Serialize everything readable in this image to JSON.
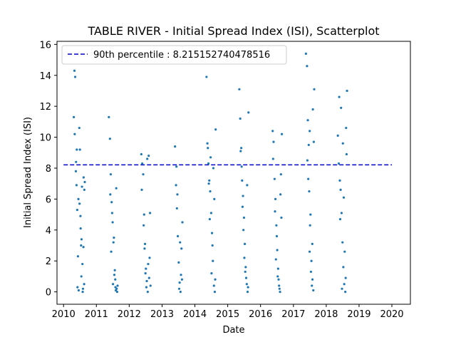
{
  "chart_data": {
    "type": "scatter",
    "title": "TABLE RIVER - Initial Spread Index (ISI), Scatterplot",
    "xlabel": "Date",
    "ylabel": "Initial Spread Index (ISI)",
    "xlim": [
      "2009-10-20",
      "2020-07-25"
    ],
    "ylim": [
      -0.8,
      16.2
    ],
    "x_ticks": [
      "2010",
      "2011",
      "2012",
      "2013",
      "2014",
      "2015",
      "2016",
      "2017",
      "2018",
      "2019",
      "2020"
    ],
    "y_ticks": [
      0,
      2,
      4,
      6,
      8,
      10,
      12,
      14,
      16
    ],
    "grid": false,
    "legend_position": "top-left",
    "marker_color": "#1f77b4",
    "reference_line": {
      "label": "90th percentile : 8.215152740478516",
      "value": 8.215152740478516,
      "x_range": [
        "2010-01-01",
        "2020-01-01"
      ],
      "style": "dashed",
      "color": "#0000cd"
    },
    "series": [
      {
        "x": [
          "2010-04-25",
          "2010-05-02",
          "2010-05-10",
          "2010-05-18",
          "2010-05-25",
          "2010-06-02",
          "2010-06-10",
          "2010-06-18",
          "2010-06-25",
          "2010-07-02",
          "2010-07-10",
          "2010-07-18",
          "2010-07-25",
          "2010-08-02",
          "2010-08-10",
          "2010-08-18",
          "2010-08-25",
          "2010-05-05",
          "2010-06-15",
          "2010-07-20",
          "2010-08-05",
          "2010-05-20",
          "2010-06-28",
          "2010-07-30",
          "2010-08-20",
          "2010-06-05",
          "2010-07-08",
          "2010-08-12",
          "2010-05-28",
          "2010-07-15",
          "2011-05-20",
          "2011-06-01",
          "2011-06-10",
          "2011-06-20",
          "2011-07-01",
          "2011-07-10",
          "2011-07-20",
          "2011-08-01",
          "2011-08-10",
          "2011-08-20",
          "2011-06-15",
          "2011-07-05",
          "2011-07-25",
          "2011-08-05",
          "2011-06-25",
          "2011-07-15",
          "2011-08-15",
          "2011-06-05",
          "2011-07-30",
          "2011-08-25",
          "2012-05-15",
          "2012-05-25",
          "2012-06-05",
          "2012-06-15",
          "2012-06-25",
          "2012-07-05",
          "2012-07-15",
          "2012-07-25",
          "2012-08-05",
          "2012-08-15",
          "2012-08-25",
          "2012-05-20",
          "2012-06-10",
          "2012-06-30",
          "2012-07-20",
          "2012-08-10",
          "2012-06-20",
          "2012-07-10",
          "2012-08-20",
          "2012-07-30",
          "2013-05-25",
          "2013-06-05",
          "2013-06-15",
          "2013-06-25",
          "2013-07-05",
          "2013-07-15",
          "2013-07-25",
          "2013-08-05",
          "2013-08-15",
          "2013-06-10",
          "2013-07-10",
          "2013-07-30",
          "2013-06-20",
          "2013-07-20",
          "2013-08-10",
          "2014-05-10",
          "2014-05-20",
          "2014-06-01",
          "2014-06-10",
          "2014-06-20",
          "2014-07-01",
          "2014-07-10",
          "2014-07-20",
          "2014-08-01",
          "2014-08-10",
          "2014-08-20",
          "2014-05-25",
          "2014-06-15",
          "2014-07-05",
          "2014-07-25",
          "2014-08-05",
          "2014-06-05",
          "2014-07-15",
          "2014-08-15",
          "2014-06-25",
          "2015-05-10",
          "2015-05-20",
          "2015-06-01",
          "2015-06-10",
          "2015-06-20",
          "2015-07-01",
          "2015-07-10",
          "2015-07-20",
          "2015-08-01",
          "2015-08-10",
          "2015-08-20",
          "2015-05-25",
          "2015-06-15",
          "2015-07-05",
          "2015-07-25",
          "2015-08-05",
          "2015-06-05",
          "2015-07-15",
          "2015-08-15",
          "2015-06-25",
          "2016-05-15",
          "2016-05-25",
          "2016-06-05",
          "2016-06-15",
          "2016-06-25",
          "2016-07-05",
          "2016-07-15",
          "2016-07-25",
          "2016-08-05",
          "2016-08-15",
          "2016-08-25",
          "2016-05-20",
          "2016-06-10",
          "2016-06-30",
          "2016-07-20",
          "2016-08-10",
          "2016-06-20",
          "2016-07-10",
          "2016-08-20",
          "2016-07-30",
          "2017-05-20",
          "2017-06-01",
          "2017-06-10",
          "2017-06-20",
          "2017-07-01",
          "2017-07-10",
          "2017-07-20",
          "2017-08-01",
          "2017-08-10",
          "2017-08-20",
          "2017-06-05",
          "2017-06-15",
          "2017-07-05",
          "2017-07-15",
          "2017-07-25",
          "2017-08-05",
          "2017-06-25",
          "2017-07-30",
          "2017-08-15",
          "2017-06-30",
          "2018-05-10",
          "2018-05-20",
          "2018-06-01",
          "2018-06-10",
          "2018-06-20",
          "2018-07-01",
          "2018-07-10",
          "2018-07-20",
          "2018-08-01",
          "2018-08-10",
          "2018-08-20",
          "2018-05-25",
          "2018-06-15",
          "2018-07-05",
          "2018-07-25",
          "2018-08-05",
          "2018-06-05",
          "2018-07-15",
          "2018-08-15",
          "2018-06-25"
        ],
        "y": [
          11.3,
          14.3,
          13.9,
          7.8,
          6.9,
          5.3,
          2.3,
          0.1,
          10.6,
          9.2,
          4.1,
          1.0,
          6.8,
          0.0,
          2.9,
          0.5,
          7.1,
          10.2,
          6.0,
          3.4,
          0.2,
          8.4,
          5.7,
          1.8,
          6.6,
          0.3,
          4.9,
          7.4,
          9.2,
          3.0,
          11.3,
          9.9,
          7.6,
          5.8,
          4.5,
          3.2,
          1.1,
          0.3,
          6.7,
          0.0,
          2.6,
          0.5,
          1.4,
          0.1,
          5.1,
          3.5,
          0.2,
          6.3,
          0.8,
          0.4,
          8.9,
          8.3,
          7.6,
          5.0,
          3.1,
          1.5,
          0.7,
          0.0,
          8.8,
          2.2,
          0.4,
          6.6,
          4.3,
          1.2,
          8.6,
          0.9,
          2.8,
          0.3,
          5.1,
          1.8,
          9.4,
          6.9,
          5.4,
          3.6,
          1.9,
          0.6,
          0.0,
          2.8,
          4.5,
          8.1,
          0.2,
          1.1,
          6.3,
          3.2,
          0.8,
          13.9,
          9.6,
          8.3,
          7.2,
          6.5,
          5.1,
          3.8,
          2.0,
          0.4,
          0.0,
          10.5,
          9.3,
          4.7,
          1.2,
          8.0,
          6.0,
          7.0,
          3.0,
          0.8,
          8.7,
          13.1,
          11.2,
          9.3,
          7.2,
          6.2,
          4.8,
          3.1,
          1.6,
          0.5,
          0.0,
          11.6,
          9.1,
          5.5,
          2.2,
          0.9,
          6.9,
          8.1,
          1.3,
          0.3,
          4.0,
          10.4,
          9.7,
          7.3,
          6.0,
          4.3,
          2.7,
          1.5,
          0.4,
          0.0,
          7.6,
          10.2,
          8.6,
          5.2,
          3.6,
          0.8,
          6.3,
          2.1,
          1.0,
          4.8,
          0.2,
          15.4,
          14.6,
          11.1,
          9.5,
          10.4,
          5.0,
          2.0,
          0.8,
          0.1,
          13.1,
          8.5,
          7.3,
          4.3,
          1.3,
          0.4,
          11.8,
          6.5,
          3.1,
          9.7,
          2.6,
          10.1,
          8.3,
          7.2,
          6.6,
          5.1,
          3.2,
          1.6,
          0.5,
          0.0,
          10.6,
          13.0,
          12.6,
          11.9,
          9.6,
          2.6,
          0.9,
          4.7,
          6.1,
          8.9,
          0.2
        ]
      }
    ]
  }
}
